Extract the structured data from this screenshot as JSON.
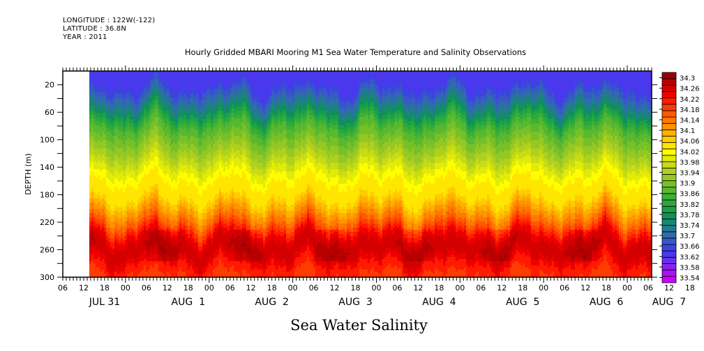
{
  "header": {
    "longitude": "LONGITUDE : 122W(-122)",
    "latitude": "LATITUDE : 36.8N",
    "year": "YEAR : 2011"
  },
  "chart_data": {
    "type": "heatmap",
    "title": "Hourly Gridded MBARI Mooring M1 Sea Water Temperature and Salinity Observations",
    "variable_label": "Sea Water Salinity",
    "ylabel": "DEPTH (m)",
    "xlabel": "",
    "y_axis": {
      "range": [
        0,
        300
      ],
      "inverted": true,
      "ticks": [
        20,
        60,
        100,
        140,
        180,
        220,
        260,
        300
      ],
      "minor_ticks": [
        40,
        80,
        120,
        160,
        200,
        240,
        280
      ]
    },
    "x_axis": {
      "start": "JUL 31 06:00",
      "end": "AUG 7 07:00",
      "hour_ticks": [
        "06",
        "12",
        "18",
        "00",
        "06",
        "12",
        "18",
        "00",
        "06",
        "12",
        "18",
        "00",
        "06",
        "12",
        "18",
        "00",
        "06",
        "12",
        "18",
        "00",
        "06",
        "12",
        "18",
        "00",
        "06",
        "12",
        "18",
        "00",
        "06",
        "12",
        "18",
        "00",
        "06"
      ],
      "day_labels": [
        {
          "label": "JUL 31",
          "hour": 12
        },
        {
          "label": "AUG  1",
          "hour": 36
        },
        {
          "label": "AUG  2",
          "hour": 60
        },
        {
          "label": "AUG  3",
          "hour": 84
        },
        {
          "label": "AUG  4",
          "hour": 108
        },
        {
          "label": "AUG  5",
          "hour": 132
        },
        {
          "label": "AUG  6",
          "hour": 156
        },
        {
          "label": "AUG  7",
          "hour": 174
        }
      ],
      "data_start_hour": 7.8,
      "total_hours": 169
    },
    "colorbar": {
      "levels": [
        "34.3",
        "34.26",
        "34.22",
        "34.18",
        "34.14",
        "34.1",
        "34.06",
        "34.02",
        "33.98",
        "33.94",
        "33.9",
        "33.86",
        "33.82",
        "33.78",
        "33.74",
        "33.7",
        "33.66",
        "33.62",
        "33.58",
        "33.54"
      ],
      "min": 33.52,
      "max": 34.32,
      "colors": [
        "#cc00ff",
        "#a812f7",
        "#8a22f0",
        "#6a30ee",
        "#4a38ec",
        "#3c44e0",
        "#3858c8",
        "#2e6cac",
        "#227a90",
        "#188774",
        "#109058",
        "#1aa046",
        "#2ca83c",
        "#3eb034",
        "#58b830",
        "#76c02a",
        "#94c824",
        "#b0d01e",
        "#c8dc14",
        "#e2ea08",
        "#fefe00",
        "#ffe600",
        "#ffcc00",
        "#ffb000",
        "#ff9400",
        "#ff7800",
        "#ff5a00",
        "#ff3c00",
        "#ff1a00",
        "#ee0000",
        "#d40000",
        "#b80000",
        "#980000"
      ]
    },
    "profile_summary": {
      "depth_m": [
        0,
        20,
        40,
        60,
        80,
        100,
        120,
        140,
        160,
        180,
        200,
        220,
        240,
        260,
        280,
        300
      ],
      "mean_salinity": [
        33.62,
        33.64,
        33.7,
        33.78,
        33.86,
        33.9,
        33.94,
        33.99,
        34.03,
        34.04,
        34.1,
        34.16,
        34.24,
        34.27,
        34.22,
        34.19
      ]
    }
  }
}
